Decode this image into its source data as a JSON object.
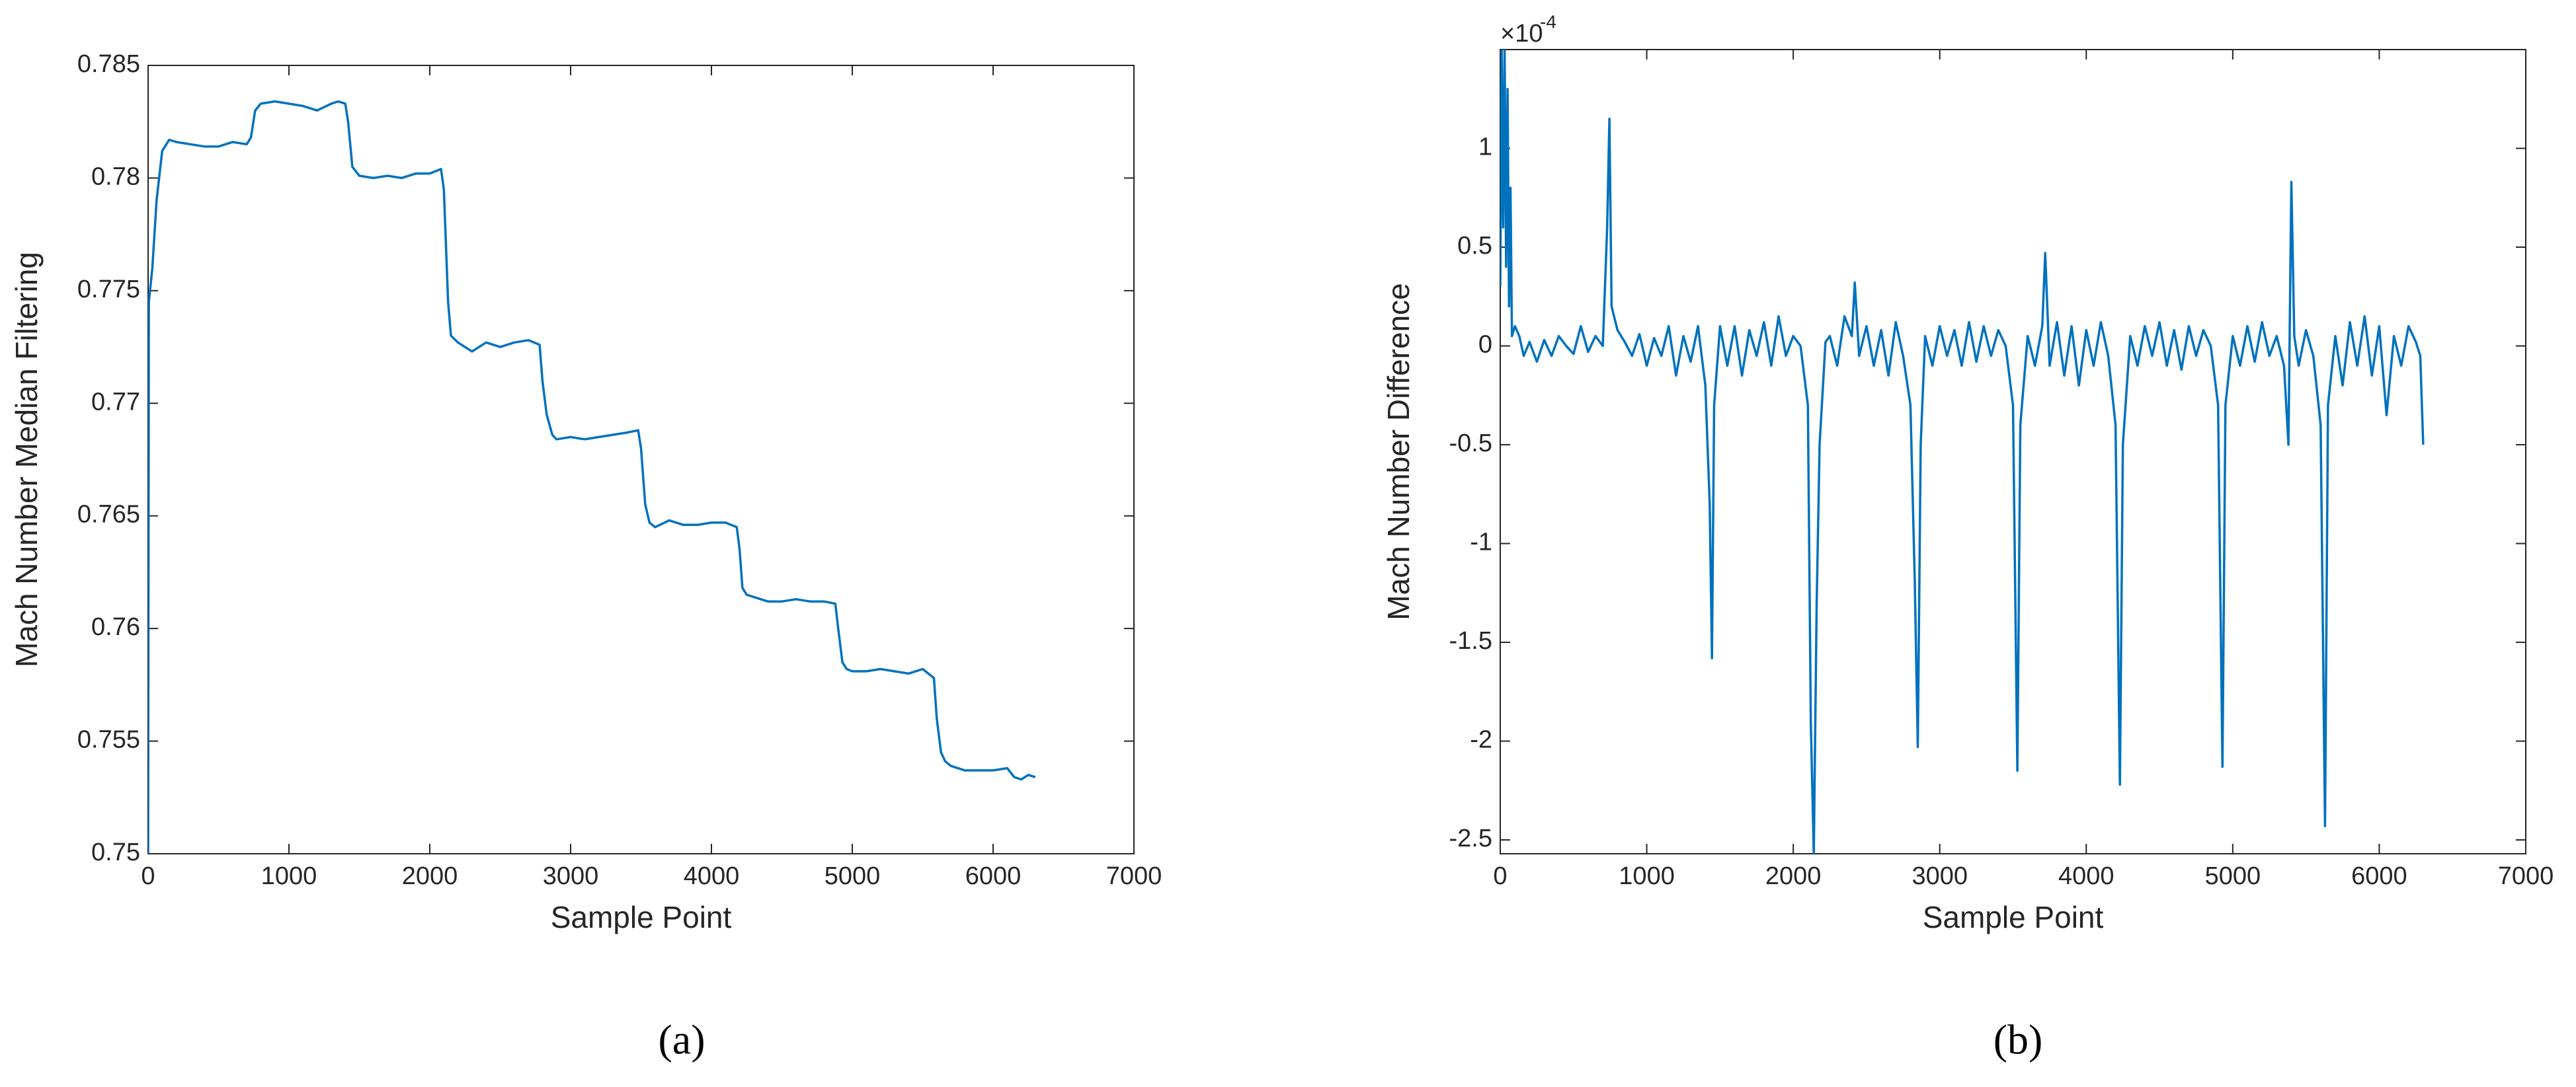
{
  "chart_data": [
    {
      "type": "line",
      "caption": "(a)",
      "xlabel": "Sample Point",
      "ylabel": "Mach Number Median Filtering",
      "xlim": [
        0,
        7000
      ],
      "xticks": [
        0,
        1000,
        2000,
        3000,
        4000,
        5000,
        6000,
        7000
      ],
      "ylim": [
        0.75,
        0.785
      ],
      "yticks": [
        0.75,
        0.755,
        0.76,
        0.765,
        0.77,
        0.775,
        0.78,
        0.785
      ],
      "grid": false,
      "color": "#0072bd",
      "x": [
        0,
        5,
        30,
        60,
        100,
        150,
        200,
        300,
        400,
        500,
        600,
        700,
        730,
        760,
        800,
        900,
        1000,
        1100,
        1200,
        1300,
        1350,
        1400,
        1420,
        1450,
        1500,
        1600,
        1700,
        1800,
        1900,
        2000,
        2080,
        2100,
        2130,
        2150,
        2200,
        2300,
        2400,
        2500,
        2600,
        2700,
        2780,
        2800,
        2830,
        2870,
        2900,
        3000,
        3100,
        3200,
        3300,
        3400,
        3480,
        3500,
        3530,
        3560,
        3600,
        3700,
        3800,
        3900,
        4000,
        4100,
        4180,
        4200,
        4220,
        4250,
        4300,
        4400,
        4500,
        4600,
        4700,
        4800,
        4880,
        4900,
        4930,
        4960,
        5000,
        5100,
        5200,
        5300,
        5400,
        5500,
        5580,
        5600,
        5630,
        5660,
        5700,
        5800,
        5900,
        6000,
        6100,
        6150,
        6200,
        6250,
        6300
      ],
      "values": [
        0.75,
        0.7745,
        0.776,
        0.779,
        0.7812,
        0.7817,
        0.7816,
        0.7815,
        0.7814,
        0.7814,
        0.7816,
        0.7815,
        0.7818,
        0.783,
        0.7833,
        0.7834,
        0.7833,
        0.7832,
        0.783,
        0.7833,
        0.7834,
        0.7833,
        0.7825,
        0.7805,
        0.7801,
        0.78,
        0.7801,
        0.78,
        0.7802,
        0.7802,
        0.7804,
        0.7795,
        0.7745,
        0.773,
        0.7727,
        0.7723,
        0.7727,
        0.7725,
        0.7727,
        0.7728,
        0.7726,
        0.771,
        0.7695,
        0.7686,
        0.7684,
        0.7685,
        0.7684,
        0.7685,
        0.7686,
        0.7687,
        0.7688,
        0.768,
        0.7655,
        0.7647,
        0.7645,
        0.7648,
        0.7646,
        0.7646,
        0.7647,
        0.7647,
        0.7645,
        0.7635,
        0.7618,
        0.7615,
        0.7614,
        0.7612,
        0.7612,
        0.7613,
        0.7612,
        0.7612,
        0.7611,
        0.76,
        0.7585,
        0.7582,
        0.7581,
        0.7581,
        0.7582,
        0.7581,
        0.758,
        0.7582,
        0.7578,
        0.756,
        0.7545,
        0.7541,
        0.7539,
        0.7537,
        0.7537,
        0.7537,
        0.7538,
        0.7534,
        0.7533,
        0.7535,
        0.7534
      ]
    },
    {
      "type": "line",
      "caption": "(b)",
      "xlabel": "Sample Point",
      "ylabel": "Mach Number Difference",
      "y_multiplier": "×10",
      "y_multiplier_exponent": "-4",
      "xlim": [
        0,
        7000
      ],
      "xticks": [
        0,
        1000,
        2000,
        3000,
        4000,
        5000,
        6000,
        7000
      ],
      "ylim": [
        -2.57,
        1.5
      ],
      "yticks": [
        -2.5,
        -2,
        -1.5,
        -1,
        -0.5,
        0,
        0.5,
        1
      ],
      "grid": false,
      "color": "#0072bd",
      "x": [
        0,
        10,
        20,
        30,
        40,
        50,
        60,
        70,
        80,
        100,
        130,
        160,
        200,
        250,
        300,
        350,
        400,
        450,
        500,
        550,
        600,
        650,
        700,
        730,
        745,
        760,
        800,
        850,
        900,
        950,
        1000,
        1050,
        1100,
        1150,
        1200,
        1250,
        1300,
        1350,
        1400,
        1430,
        1445,
        1460,
        1500,
        1550,
        1600,
        1650,
        1700,
        1750,
        1800,
        1850,
        1900,
        1950,
        2000,
        2050,
        2100,
        2120,
        2140,
        2160,
        2180,
        2220,
        2250,
        2300,
        2350,
        2400,
        2420,
        2450,
        2500,
        2550,
        2600,
        2650,
        2700,
        2750,
        2800,
        2830,
        2850,
        2870,
        2900,
        2950,
        3000,
        3050,
        3100,
        3150,
        3200,
        3250,
        3300,
        3350,
        3400,
        3450,
        3500,
        3530,
        3550,
        3600,
        3650,
        3700,
        3720,
        3750,
        3800,
        3850,
        3900,
        3950,
        4000,
        4050,
        4100,
        4150,
        4200,
        4230,
        4250,
        4300,
        4350,
        4400,
        4450,
        4500,
        4550,
        4600,
        4650,
        4700,
        4750,
        4800,
        4850,
        4900,
        4930,
        4950,
        5000,
        5050,
        5100,
        5150,
        5200,
        5250,
        5300,
        5350,
        5380,
        5400,
        5420,
        5450,
        5500,
        5550,
        5600,
        5630,
        5650,
        5700,
        5750,
        5800,
        5850,
        5900,
        5950,
        6000,
        6050,
        6100,
        6150,
        6200,
        6250,
        6280,
        6300
      ],
      "values": [
        0.3,
        1.5,
        0.6,
        1.5,
        0.4,
        1.3,
        0.2,
        0.8,
        0.05,
        0.1,
        0.05,
        -0.05,
        0.02,
        -0.08,
        0.03,
        -0.05,
        0.05,
        0,
        -0.04,
        0.1,
        -0.03,
        0.05,
        0,
        0.6,
        1.15,
        0.2,
        0.08,
        0.02,
        -0.05,
        0.06,
        -0.1,
        0.04,
        -0.05,
        0.1,
        -0.15,
        0.05,
        -0.08,
        0.1,
        -0.2,
        -0.8,
        -1.58,
        -0.3,
        0.1,
        -0.1,
        0.1,
        -0.15,
        0.08,
        -0.05,
        0.12,
        -0.1,
        0.15,
        -0.05,
        0.05,
        0,
        -0.3,
        -1.9,
        -2.57,
        -1.3,
        -0.5,
        0.02,
        0.05,
        -0.1,
        0.15,
        0.05,
        0.32,
        -0.05,
        0.1,
        -0.1,
        0.08,
        -0.15,
        0.12,
        -0.05,
        -0.3,
        -1.2,
        -2.03,
        -0.5,
        0.05,
        -0.1,
        0.1,
        -0.05,
        0.08,
        -0.1,
        0.12,
        -0.08,
        0.1,
        -0.05,
        0.08,
        0,
        -0.3,
        -2.15,
        -0.4,
        0.05,
        -0.1,
        0.1,
        0.47,
        -0.1,
        0.12,
        -0.15,
        0.1,
        -0.2,
        0.08,
        -0.1,
        0.12,
        -0.05,
        -0.4,
        -2.22,
        -0.5,
        0.05,
        -0.1,
        0.1,
        -0.05,
        0.12,
        -0.1,
        0.08,
        -0.12,
        0.1,
        -0.05,
        0.08,
        0,
        -0.3,
        -2.13,
        -0.3,
        0.05,
        -0.1,
        0.1,
        -0.08,
        0.12,
        -0.05,
        0.05,
        -0.1,
        -0.5,
        0.83,
        0.05,
        -0.1,
        0.08,
        -0.05,
        -0.4,
        -2.43,
        -0.3,
        0.05,
        -0.2,
        0.12,
        -0.1,
        0.15,
        -0.15,
        0.1,
        -0.35,
        0.05,
        -0.1,
        0.1,
        0.02,
        -0.05,
        -0.5
      ]
    }
  ]
}
